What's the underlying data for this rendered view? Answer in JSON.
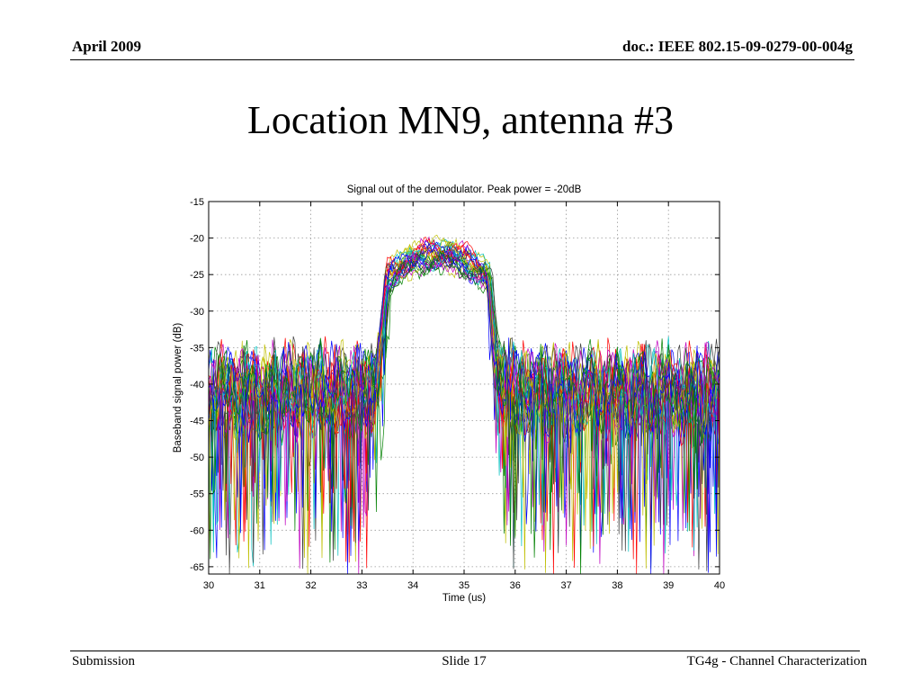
{
  "header": {
    "left": "April 2009",
    "right": "doc.: IEEE 802.15-09-0279-00-004g"
  },
  "slide": {
    "title": "Location MN9, antenna #3"
  },
  "footer": {
    "left": "Submission",
    "center": "Slide 17",
    "right": "TG4g - Channel Characterization"
  },
  "chart_data": {
    "type": "line",
    "title": "Signal out of the demodulator. Peak power = -20dB",
    "xlabel": "Time (us)",
    "ylabel": "Baseband signal power (dB)",
    "xlim": [
      30,
      40
    ],
    "ylim": [
      -66,
      -15
    ],
    "xticks": [
      30,
      31,
      32,
      33,
      34,
      35,
      36,
      37,
      38,
      39,
      40
    ],
    "yticks": [
      -15,
      -20,
      -25,
      -30,
      -35,
      -40,
      -45,
      -50,
      -55,
      -60,
      -65
    ],
    "grid": true,
    "series_count": 30,
    "envelope": {
      "noise_floor_db": -41,
      "noise_range_db": [
        -66,
        -33
      ],
      "burst_start_us": 33.5,
      "burst_end_us": 35.5,
      "burst_peak_db": -21,
      "burst_level_range_db": [
        -27,
        -21
      ]
    },
    "series_colors": [
      "#0000ff",
      "#008000",
      "#ff0000",
      "#00bfbf",
      "#bf00bf",
      "#bfbf00",
      "#404040"
    ]
  }
}
